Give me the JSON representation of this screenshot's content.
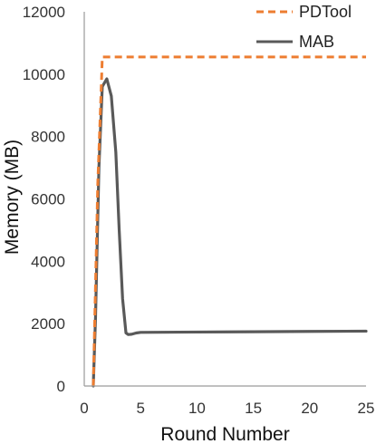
{
  "chart_data": {
    "type": "line",
    "title": "",
    "xlabel": "Round Number",
    "ylabel": "Memory (MB)",
    "xlim": [
      0,
      25
    ],
    "ylim": [
      0,
      12000
    ],
    "x_ticks": [
      "0",
      "5",
      "10",
      "15",
      "20",
      "25"
    ],
    "y_ticks": [
      "0",
      "2000",
      "4000",
      "6000",
      "8000",
      "10000",
      "12000"
    ],
    "grid": false,
    "legend_position": "top-right",
    "series": [
      {
        "name": "PDTool",
        "color": "#ed7d31",
        "style": "dashed",
        "x": [
          0.8,
          1.2,
          1.55,
          1.6,
          2,
          5,
          10,
          15,
          20,
          25
        ],
        "y": [
          0,
          6500,
          10000,
          10550,
          10550,
          10550,
          10550,
          10550,
          10550,
          10550
        ]
      },
      {
        "name": "MAB",
        "color": "#595959",
        "style": "solid",
        "x": [
          0.8,
          1,
          1.3,
          1.6,
          2,
          2.4,
          2.8,
          3.1,
          3.4,
          3.7,
          3.9,
          4.2,
          4.6,
          5,
          10,
          15,
          20,
          25
        ],
        "y": [
          0,
          2200,
          7000,
          9600,
          9850,
          9300,
          7500,
          5000,
          2800,
          1700,
          1650,
          1660,
          1700,
          1720,
          1730,
          1740,
          1750,
          1760
        ]
      }
    ]
  }
}
